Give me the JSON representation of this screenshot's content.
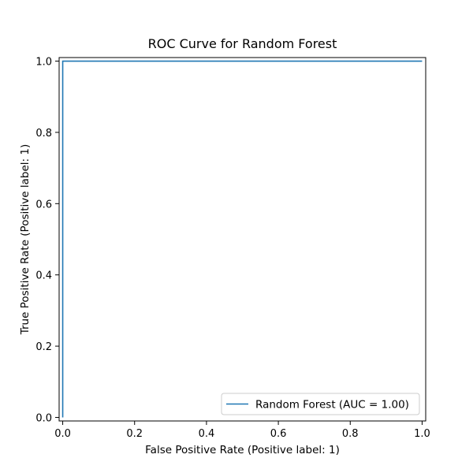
{
  "chart_data": {
    "type": "line",
    "title": "ROC Curve for Random Forest",
    "xlabel": "False Positive Rate (Positive label: 1)",
    "ylabel": "True Positive Rate (Positive label: 1)",
    "xlim": [
      0,
      1
    ],
    "ylim": [
      0,
      1
    ],
    "xticks": [
      "0.0",
      "0.2",
      "0.4",
      "0.6",
      "0.8",
      "1.0"
    ],
    "yticks": [
      "0.0",
      "0.2",
      "0.4",
      "0.6",
      "0.8",
      "1.0"
    ],
    "grid": false,
    "legend_position": "bottom-right",
    "series": [
      {
        "name": "Random Forest (AUC = 1.00)",
        "color": "#1f77b4",
        "x": [
          0.0,
          0.0,
          1.0
        ],
        "y": [
          0.0,
          1.0,
          1.0
        ]
      }
    ]
  }
}
